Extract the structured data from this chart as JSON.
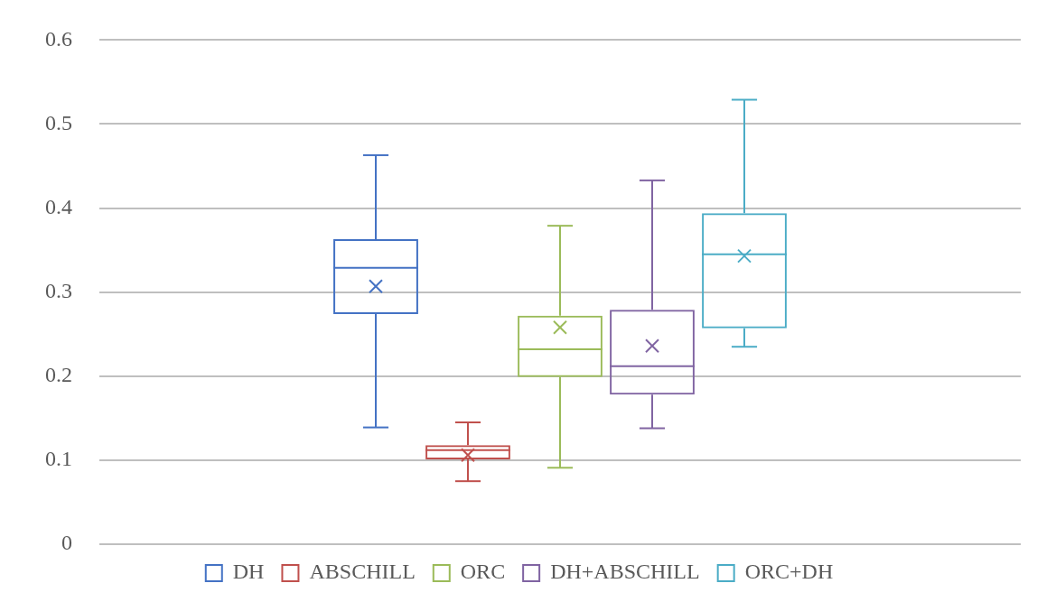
{
  "chart_data": {
    "type": "box",
    "categories": [
      null
    ],
    "ylim": [
      0,
      0.6
    ],
    "yticks": [
      0,
      0.1,
      0.2,
      0.3,
      0.4,
      0.5,
      0.6
    ],
    "grid": "y",
    "legend": "bottom",
    "tick_labels": "y",
    "series": [
      {
        "name": "DH",
        "color": "#4472c4",
        "boxes": [
          {
            "low": 0.139,
            "q1": 0.274,
            "median": 0.329,
            "q3": 0.363,
            "high": 0.463,
            "mean": 0.307
          }
        ]
      },
      {
        "name": "ABSCHILL",
        "color": "#c0504d",
        "boxes": [
          {
            "low": 0.075,
            "q1": 0.101,
            "median": 0.112,
            "q3": 0.118,
            "high": 0.145,
            "mean": 0.106
          }
        ]
      },
      {
        "name": "ORC",
        "color": "#9bbb59",
        "boxes": [
          {
            "low": 0.091,
            "q1": 0.199,
            "median": 0.232,
            "q3": 0.272,
            "high": 0.379,
            "mean": 0.258
          }
        ]
      },
      {
        "name": "DH+ABSCHILL",
        "color": "#8064a2",
        "boxes": [
          {
            "low": 0.138,
            "q1": 0.178,
            "median": 0.212,
            "q3": 0.279,
            "high": 0.433,
            "mean": 0.236
          }
        ]
      },
      {
        "name": "ORC+DH",
        "color": "#4bacc6",
        "boxes": [
          {
            "low": 0.235,
            "q1": 0.257,
            "median": 0.345,
            "q3": 0.394,
            "high": 0.529,
            "mean": 0.343
          }
        ]
      }
    ]
  }
}
